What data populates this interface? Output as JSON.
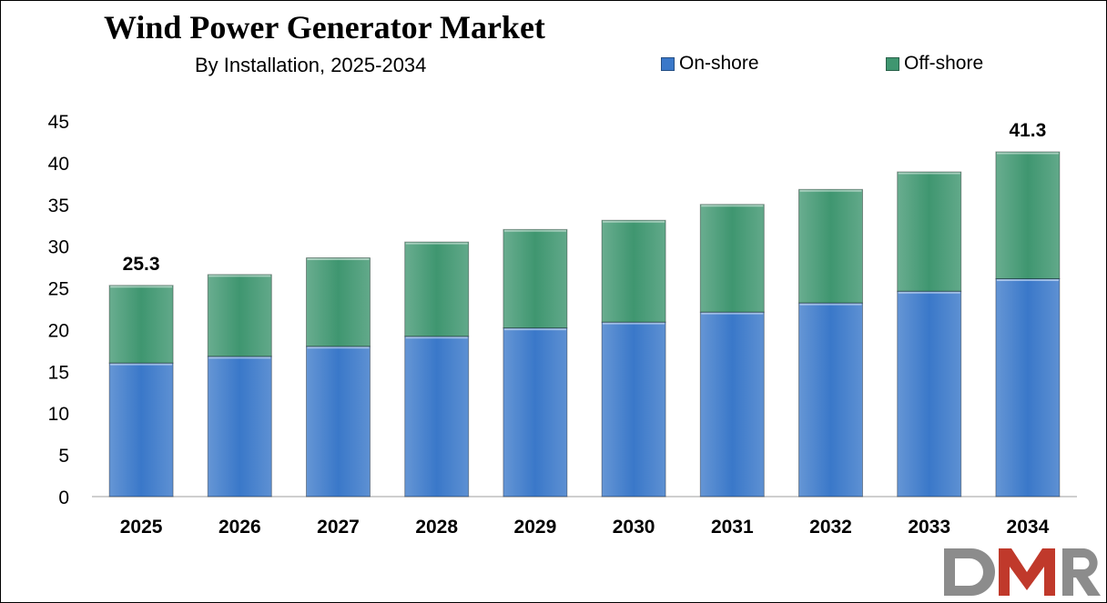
{
  "chart_data": {
    "type": "bar",
    "stacked": true,
    "title": "Wind Power Generator Market",
    "subtitle": "By Installation, 2025-2034",
    "categories": [
      "2025",
      "2026",
      "2027",
      "2028",
      "2029",
      "2030",
      "2031",
      "2032",
      "2033",
      "2034"
    ],
    "series": [
      {
        "name": "On-shore",
        "color": "#3a78c9",
        "values": [
          16.0,
          16.8,
          18.0,
          19.2,
          20.2,
          20.9,
          22.1,
          23.2,
          24.6,
          26.1
        ]
      },
      {
        "name": "Off-shore",
        "color": "#3f9670",
        "values": [
          9.3,
          9.8,
          10.6,
          11.3,
          11.8,
          12.2,
          12.9,
          13.6,
          14.3,
          15.2
        ]
      }
    ],
    "data_labels": [
      {
        "category": "2025",
        "text": "25.3"
      },
      {
        "category": "2034",
        "text": "41.3"
      }
    ],
    "ylim": [
      0,
      45
    ],
    "yticks": [
      0,
      5,
      10,
      15,
      20,
      25,
      30,
      35,
      40,
      45
    ],
    "xlabel": "",
    "ylabel": "",
    "grid": false,
    "legend_position": "top-right"
  },
  "logo": {
    "name": "dmr-logo",
    "text": "DMR",
    "colors": {
      "d": "#8c8c8c",
      "m": "#c0392b",
      "r": "#8c8c8c"
    }
  }
}
